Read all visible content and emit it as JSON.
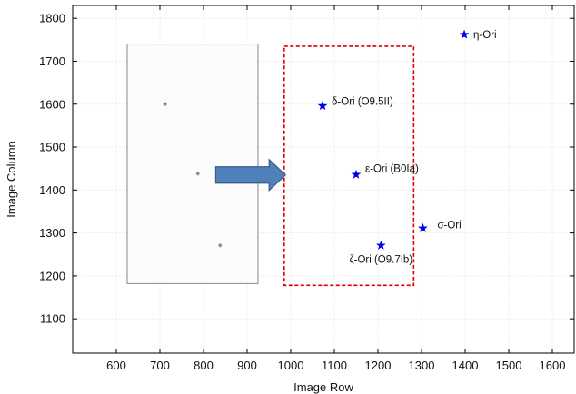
{
  "chart_data": {
    "type": "scatter",
    "title": "",
    "xlabel": "Image Row",
    "ylabel": "Image Column",
    "xlim": [
      500,
      1650
    ],
    "ylim": [
      1020,
      1830
    ],
    "xticks": [
      600,
      700,
      800,
      900,
      1000,
      1100,
      1200,
      1300,
      1400,
      1500,
      1600
    ],
    "yticks": [
      1100,
      1200,
      1300,
      1400,
      1500,
      1600,
      1700,
      1800
    ],
    "grid": true,
    "marker": "star",
    "marker_color": "#0000ee",
    "points": [
      {
        "x": 1398,
        "y": 1762,
        "label": "η-Ori"
      },
      {
        "x": 1073,
        "y": 1596,
        "label": "δ-Ori (O9.5II)"
      },
      {
        "x": 1150,
        "y": 1436,
        "label": "ε-Ori (B0Ia)"
      },
      {
        "x": 1303,
        "y": 1311,
        "label": "σ-Ori"
      },
      {
        "x": 1207,
        "y": 1271,
        "label": "ζ-Ori (O9.7Ib)"
      }
    ],
    "inset_image": {
      "description": "grayscale frame",
      "x_range": [
        625,
        925
      ],
      "y_range": [
        1182,
        1740
      ],
      "spots": [
        {
          "x": 712,
          "y": 1600
        },
        {
          "x": 787,
          "y": 1438
        },
        {
          "x": 838,
          "y": 1271
        }
      ]
    },
    "highlight_box": {
      "x_range": [
        985,
        1282
      ],
      "y_range": [
        1178,
        1735
      ],
      "color": "#e00000",
      "style": "dashed"
    },
    "arrow": {
      "from": [
        828,
        1435
      ],
      "to": [
        988,
        1435
      ],
      "color": "#4f81bd"
    }
  }
}
